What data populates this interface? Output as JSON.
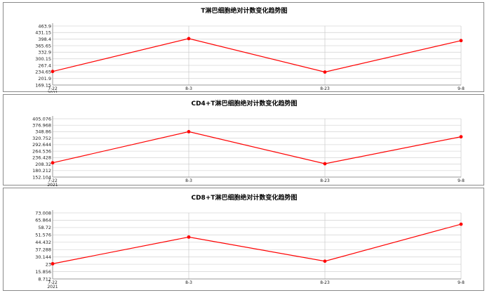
{
  "chart_data": [
    {
      "type": "line",
      "title": "T淋巴细胞绝对计数变化趋势图",
      "categories": [
        "7-22",
        "8-3",
        "8-23",
        "9-8"
      ],
      "year_label": "2021",
      "yticks": [
        "169.15",
        "201.9",
        "234.65",
        "267.4",
        "300.15",
        "332.9",
        "365.65",
        "398.4",
        "431.15",
        "463.9"
      ],
      "ylim": [
        169.15,
        463.9
      ],
      "values": [
        237,
        401,
        234,
        391
      ],
      "line_color": "#ff0000",
      "grid": true
    },
    {
      "type": "line",
      "title": "CD4+T淋巴细胞绝对计数变化趋势图",
      "categories": [
        "7-22",
        "8-3",
        "8-23",
        "9-8"
      ],
      "year_label": "2021",
      "yticks": [
        "152.104",
        "180.212",
        "208.32",
        "236.428",
        "264.536",
        "292.644",
        "320.752",
        "348.86",
        "376.968",
        "405.076"
      ],
      "ylim": [
        152.104,
        405.076
      ],
      "values": [
        214,
        349,
        210,
        327
      ],
      "line_color": "#ff0000",
      "grid": true
    },
    {
      "type": "line",
      "title": "CD8+T淋巴细胞绝对计数变化趋势图",
      "categories": [
        "7-22",
        "8-3",
        "8-23",
        "9-8"
      ],
      "year_label": "2021",
      "yticks": [
        "8.712",
        "15.856",
        "23",
        "30.144",
        "37.288",
        "44.432",
        "51.576",
        "58.72",
        "65.864",
        "73.008"
      ],
      "ylim": [
        8.712,
        73.008
      ],
      "values": [
        23.5,
        49.5,
        26,
        62
      ],
      "line_color": "#ff0000",
      "grid": true
    }
  ]
}
